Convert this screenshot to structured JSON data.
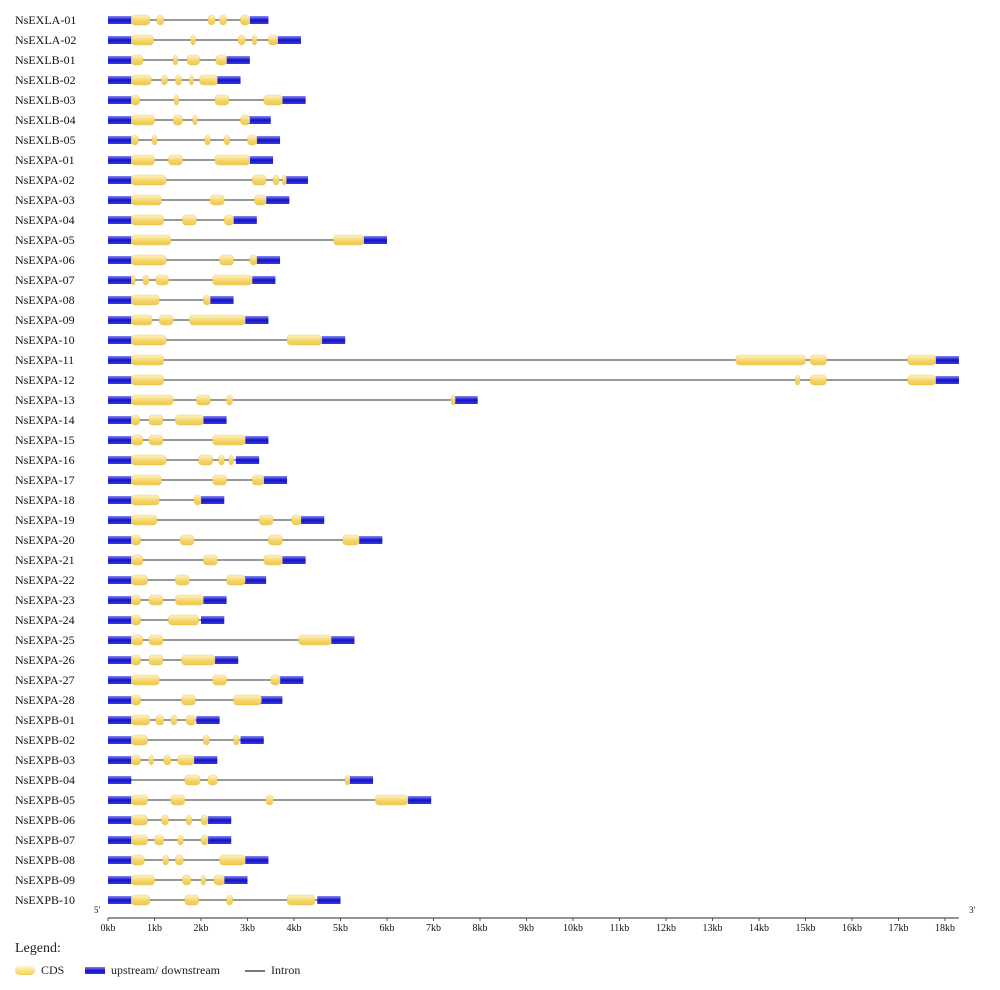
{
  "chart_data": {
    "type": "gene-structure",
    "x_axis": {
      "unit": "kb",
      "range_kb": [
        0,
        18.3
      ],
      "ticks": [
        "0kb",
        "1kb",
        "2kb",
        "3kb",
        "4kb",
        "5kb",
        "6kb",
        "7kb",
        "8kb",
        "9kb",
        "10kb",
        "11kb",
        "12kb",
        "13kb",
        "14kb",
        "15kb",
        "16kb",
        "17kb",
        "18kb"
      ],
      "left_end_label": "5'",
      "right_end_label": "3'"
    },
    "colors": {
      "cds": "#f2cf5a",
      "utr": "#1a1ad0",
      "intron": "#777777"
    },
    "genes": [
      {
        "name": "NsEXLA-01",
        "length": 3.45,
        "utr5": 0.5,
        "utr3": 0.4,
        "cds": [
          [
            0.5,
            0.9
          ],
          [
            1.05,
            1.2
          ],
          [
            2.15,
            2.3
          ],
          [
            2.4,
            2.55
          ],
          [
            2.85,
            3.05
          ]
        ]
      },
      {
        "name": "NsEXLA-02",
        "length": 4.15,
        "utr5": 0.5,
        "utr3": 0.5,
        "cds": [
          [
            0.5,
            0.98
          ],
          [
            1.78,
            1.88
          ],
          [
            2.8,
            2.95
          ],
          [
            3.1,
            3.2
          ],
          [
            3.45,
            3.65
          ]
        ]
      },
      {
        "name": "NsEXLB-01",
        "length": 3.05,
        "utr5": 0.5,
        "utr3": 0.5,
        "cds": [
          [
            0.5,
            0.75
          ],
          [
            1.4,
            1.5
          ],
          [
            1.7,
            1.97
          ],
          [
            2.32,
            2.55
          ]
        ]
      },
      {
        "name": "NsEXLB-02",
        "length": 2.85,
        "utr5": 0.5,
        "utr3": 0.5,
        "cds": [
          [
            0.5,
            0.93
          ],
          [
            1.15,
            1.28
          ],
          [
            1.45,
            1.58
          ],
          [
            1.75,
            1.84
          ],
          [
            1.97,
            2.35
          ]
        ]
      },
      {
        "name": "NsEXLB-03",
        "length": 4.25,
        "utr5": 0.5,
        "utr3": 0.5,
        "cds": [
          [
            0.5,
            0.68
          ],
          [
            1.42,
            1.52
          ],
          [
            2.3,
            2.6
          ],
          [
            3.35,
            3.75
          ]
        ]
      },
      {
        "name": "NsEXLB-04",
        "length": 3.5,
        "utr5": 0.5,
        "utr3": 0.5,
        "cds": [
          [
            0.5,
            1.0
          ],
          [
            1.4,
            1.6
          ],
          [
            1.82,
            1.92
          ],
          [
            2.85,
            3.05
          ]
        ]
      },
      {
        "name": "NsEXLB-05",
        "length": 3.7,
        "utr5": 0.5,
        "utr3": 0.5,
        "cds": [
          [
            0.5,
            0.65
          ],
          [
            0.95,
            1.05
          ],
          [
            2.08,
            2.2
          ],
          [
            2.5,
            2.62
          ],
          [
            3.0,
            3.2
          ]
        ]
      },
      {
        "name": "NsEXPA-01",
        "length": 3.55,
        "utr5": 0.5,
        "utr3": 0.5,
        "cds": [
          [
            0.5,
            1.0
          ],
          [
            1.3,
            1.6
          ],
          [
            2.3,
            3.05
          ]
        ]
      },
      {
        "name": "NsEXPA-02",
        "length": 4.3,
        "utr5": 0.5,
        "utr3": 0.5,
        "cds": [
          [
            0.5,
            1.25
          ],
          [
            3.1,
            3.4
          ],
          [
            3.55,
            3.68
          ],
          [
            3.75,
            3.8
          ]
        ]
      },
      {
        "name": "NsEXPA-03",
        "length": 3.9,
        "utr5": 0.5,
        "utr3": 0.5,
        "cds": [
          [
            0.5,
            1.15
          ],
          [
            2.2,
            2.5
          ],
          [
            3.15,
            3.4
          ]
        ]
      },
      {
        "name": "NsEXPA-04",
        "length": 3.2,
        "utr5": 0.5,
        "utr3": 0.5,
        "cds": [
          [
            0.5,
            1.2
          ],
          [
            1.6,
            1.9
          ],
          [
            2.5,
            2.7
          ]
        ]
      },
      {
        "name": "NsEXPA-05",
        "length": 6.0,
        "utr5": 0.5,
        "utr3": 0.5,
        "cds": [
          [
            0.5,
            1.35
          ],
          [
            4.85,
            5.5
          ]
        ]
      },
      {
        "name": "NsEXPA-06",
        "length": 3.7,
        "utr5": 0.5,
        "utr3": 0.5,
        "cds": [
          [
            0.5,
            1.25
          ],
          [
            2.4,
            2.7
          ],
          [
            3.05,
            3.2
          ]
        ]
      },
      {
        "name": "NsEXPA-07",
        "length": 3.6,
        "utr5": 0.5,
        "utr3": 0.5,
        "cds": [
          [
            0.5,
            0.58
          ],
          [
            0.75,
            0.88
          ],
          [
            1.03,
            1.3
          ],
          [
            2.25,
            3.1
          ]
        ]
      },
      {
        "name": "NsEXPA-08",
        "length": 2.7,
        "utr5": 0.5,
        "utr3": 0.5,
        "cds": [
          [
            0.5,
            1.1
          ],
          [
            2.05,
            2.2
          ]
        ]
      },
      {
        "name": "NsEXPA-09",
        "length": 3.45,
        "utr5": 0.5,
        "utr3": 0.5,
        "cds": [
          [
            0.5,
            0.95
          ],
          [
            1.1,
            1.4
          ],
          [
            1.75,
            2.95
          ]
        ]
      },
      {
        "name": "NsEXPA-10",
        "length": 5.1,
        "utr5": 0.5,
        "utr3": 0.5,
        "cds": [
          [
            0.5,
            1.25
          ],
          [
            3.85,
            4.6
          ]
        ]
      },
      {
        "name": "NsEXPA-11",
        "length": 18.3,
        "utr5": 0.5,
        "utr3": 0.5,
        "cds": [
          [
            0.5,
            1.2
          ],
          [
            13.5,
            15.0
          ],
          [
            15.1,
            15.45
          ],
          [
            17.2,
            17.8
          ]
        ]
      },
      {
        "name": "NsEXPA-12",
        "length": 18.3,
        "utr5": 0.5,
        "utr3": 0.5,
        "cds": [
          [
            0.5,
            1.2
          ],
          [
            14.78,
            14.88
          ],
          [
            15.1,
            15.45
          ],
          [
            17.2,
            17.8
          ]
        ]
      },
      {
        "name": "NsEXPA-13",
        "length": 7.95,
        "utr5": 0.5,
        "utr3": 0.5,
        "cds": [
          [
            0.5,
            1.4
          ],
          [
            1.9,
            2.2
          ],
          [
            2.55,
            2.68
          ],
          [
            7.38,
            7.45
          ]
        ]
      },
      {
        "name": "NsEXPA-14",
        "length": 2.55,
        "utr5": 0.5,
        "utr3": 0.5,
        "cds": [
          [
            0.5,
            0.68
          ],
          [
            0.88,
            1.18
          ],
          [
            1.45,
            2.05
          ]
        ]
      },
      {
        "name": "NsEXPA-15",
        "length": 3.45,
        "utr5": 0.5,
        "utr3": 0.5,
        "cds": [
          [
            0.5,
            0.75
          ],
          [
            0.88,
            1.18
          ],
          [
            2.25,
            2.95
          ]
        ]
      },
      {
        "name": "NsEXPA-16",
        "length": 3.25,
        "utr5": 0.5,
        "utr3": 0.5,
        "cds": [
          [
            0.5,
            1.25
          ],
          [
            1.95,
            2.25
          ],
          [
            2.38,
            2.5
          ],
          [
            2.6,
            2.7
          ]
        ]
      },
      {
        "name": "NsEXPA-17",
        "length": 3.85,
        "utr5": 0.5,
        "utr3": 0.5,
        "cds": [
          [
            0.5,
            1.15
          ],
          [
            2.25,
            2.55
          ],
          [
            3.1,
            3.35
          ]
        ]
      },
      {
        "name": "NsEXPA-18",
        "length": 2.5,
        "utr5": 0.5,
        "utr3": 0.5,
        "cds": [
          [
            0.5,
            1.1
          ],
          [
            1.85,
            2.0
          ]
        ]
      },
      {
        "name": "NsEXPA-19",
        "length": 4.65,
        "utr5": 0.5,
        "utr3": 0.5,
        "cds": [
          [
            0.5,
            1.05
          ],
          [
            3.25,
            3.55
          ],
          [
            3.95,
            4.15
          ]
        ]
      },
      {
        "name": "NsEXPA-20",
        "length": 5.9,
        "utr5": 0.5,
        "utr3": 0.5,
        "cds": [
          [
            0.5,
            0.7
          ],
          [
            1.55,
            1.85
          ],
          [
            3.45,
            3.75
          ],
          [
            5.05,
            5.4
          ]
        ]
      },
      {
        "name": "NsEXPA-21",
        "length": 4.25,
        "utr5": 0.5,
        "utr3": 0.5,
        "cds": [
          [
            0.5,
            0.75
          ],
          [
            2.05,
            2.35
          ],
          [
            3.35,
            3.75
          ]
        ]
      },
      {
        "name": "NsEXPA-22",
        "length": 3.4,
        "utr5": 0.5,
        "utr3": 0.5,
        "cds": [
          [
            0.5,
            0.85
          ],
          [
            1.45,
            1.75
          ],
          [
            2.55,
            2.95
          ]
        ]
      },
      {
        "name": "NsEXPA-23",
        "length": 2.55,
        "utr5": 0.5,
        "utr3": 0.5,
        "cds": [
          [
            0.5,
            0.7
          ],
          [
            0.88,
            1.18
          ],
          [
            1.45,
            2.05
          ]
        ]
      },
      {
        "name": "NsEXPA-24",
        "length": 2.5,
        "utr5": 0.5,
        "utr3": 0.5,
        "cds": [
          [
            0.5,
            0.7
          ],
          [
            1.3,
            1.95
          ]
        ]
      },
      {
        "name": "NsEXPA-25",
        "length": 5.3,
        "utr5": 0.5,
        "utr3": 0.5,
        "cds": [
          [
            0.5,
            0.75
          ],
          [
            0.88,
            1.18
          ],
          [
            4.1,
            4.8
          ]
        ]
      },
      {
        "name": "NsEXPA-26",
        "length": 2.8,
        "utr5": 0.5,
        "utr3": 0.5,
        "cds": [
          [
            0.5,
            0.7
          ],
          [
            0.88,
            1.18
          ],
          [
            1.58,
            2.3
          ]
        ]
      },
      {
        "name": "NsEXPA-27",
        "length": 4.2,
        "utr5": 0.5,
        "utr3": 0.5,
        "cds": [
          [
            0.5,
            1.1
          ],
          [
            2.25,
            2.55
          ],
          [
            3.5,
            3.7
          ]
        ]
      },
      {
        "name": "NsEXPA-28",
        "length": 3.75,
        "utr5": 0.5,
        "utr3": 0.5,
        "cds": [
          [
            0.5,
            0.7
          ],
          [
            1.58,
            1.88
          ],
          [
            2.7,
            3.3
          ]
        ]
      },
      {
        "name": "NsEXPB-01",
        "length": 2.4,
        "utr5": 0.5,
        "utr3": 0.5,
        "cds": [
          [
            0.5,
            0.9
          ],
          [
            1.03,
            1.2
          ],
          [
            1.35,
            1.48
          ],
          [
            1.68,
            1.88
          ]
        ]
      },
      {
        "name": "NsEXPB-02",
        "length": 3.35,
        "utr5": 0.5,
        "utr3": 0.5,
        "cds": [
          [
            0.5,
            0.85
          ],
          [
            2.05,
            2.18
          ],
          [
            2.7,
            2.82
          ]
        ]
      },
      {
        "name": "NsEXPB-03",
        "length": 2.35,
        "utr5": 0.5,
        "utr3": 0.5,
        "cds": [
          [
            0.5,
            0.7
          ],
          [
            0.88,
            0.98
          ],
          [
            1.2,
            1.35
          ],
          [
            1.5,
            1.85
          ]
        ]
      },
      {
        "name": "NsEXPB-04",
        "length": 5.7,
        "utr5": 0.5,
        "utr3": 0.5,
        "cds": [
          [
            1.65,
            1.98
          ],
          [
            2.15,
            2.35
          ],
          [
            5.1,
            5.2
          ]
        ]
      },
      {
        "name": "NsEXPB-05",
        "length": 6.95,
        "utr5": 0.5,
        "utr3": 0.5,
        "cds": [
          [
            0.5,
            0.85
          ],
          [
            1.35,
            1.65
          ],
          [
            3.4,
            3.55
          ],
          [
            5.75,
            6.45
          ]
        ]
      },
      {
        "name": "NsEXPB-06",
        "length": 2.65,
        "utr5": 0.5,
        "utr3": 0.5,
        "cds": [
          [
            0.5,
            0.85
          ],
          [
            1.15,
            1.3
          ],
          [
            1.68,
            1.8
          ],
          [
            2.0,
            2.15
          ]
        ]
      },
      {
        "name": "NsEXPB-07",
        "length": 2.65,
        "utr5": 0.5,
        "utr3": 0.5,
        "cds": [
          [
            0.5,
            0.85
          ],
          [
            1.0,
            1.2
          ],
          [
            1.5,
            1.62
          ],
          [
            2.0,
            2.15
          ]
        ]
      },
      {
        "name": "NsEXPB-08",
        "length": 3.45,
        "utr5": 0.5,
        "utr3": 0.5,
        "cds": [
          [
            0.5,
            0.78
          ],
          [
            1.18,
            1.3
          ],
          [
            1.45,
            1.62
          ],
          [
            2.4,
            2.95
          ]
        ]
      },
      {
        "name": "NsEXPB-09",
        "length": 3.0,
        "utr5": 0.5,
        "utr3": 0.5,
        "cds": [
          [
            0.5,
            1.0
          ],
          [
            1.6,
            1.78
          ],
          [
            2.0,
            2.1
          ],
          [
            2.28,
            2.5
          ]
        ]
      },
      {
        "name": "NsEXPB-10",
        "length": 5.0,
        "utr5": 0.5,
        "utr3": 0.5,
        "cds": [
          [
            0.5,
            0.9
          ],
          [
            1.65,
            1.95
          ],
          [
            2.55,
            2.68
          ],
          [
            3.85,
            4.45
          ]
        ]
      }
    ]
  },
  "legend": {
    "title": "Legend:",
    "cds_label": "CDS",
    "utr_label": "upstream/ downstream",
    "intron_label": "Intron"
  }
}
